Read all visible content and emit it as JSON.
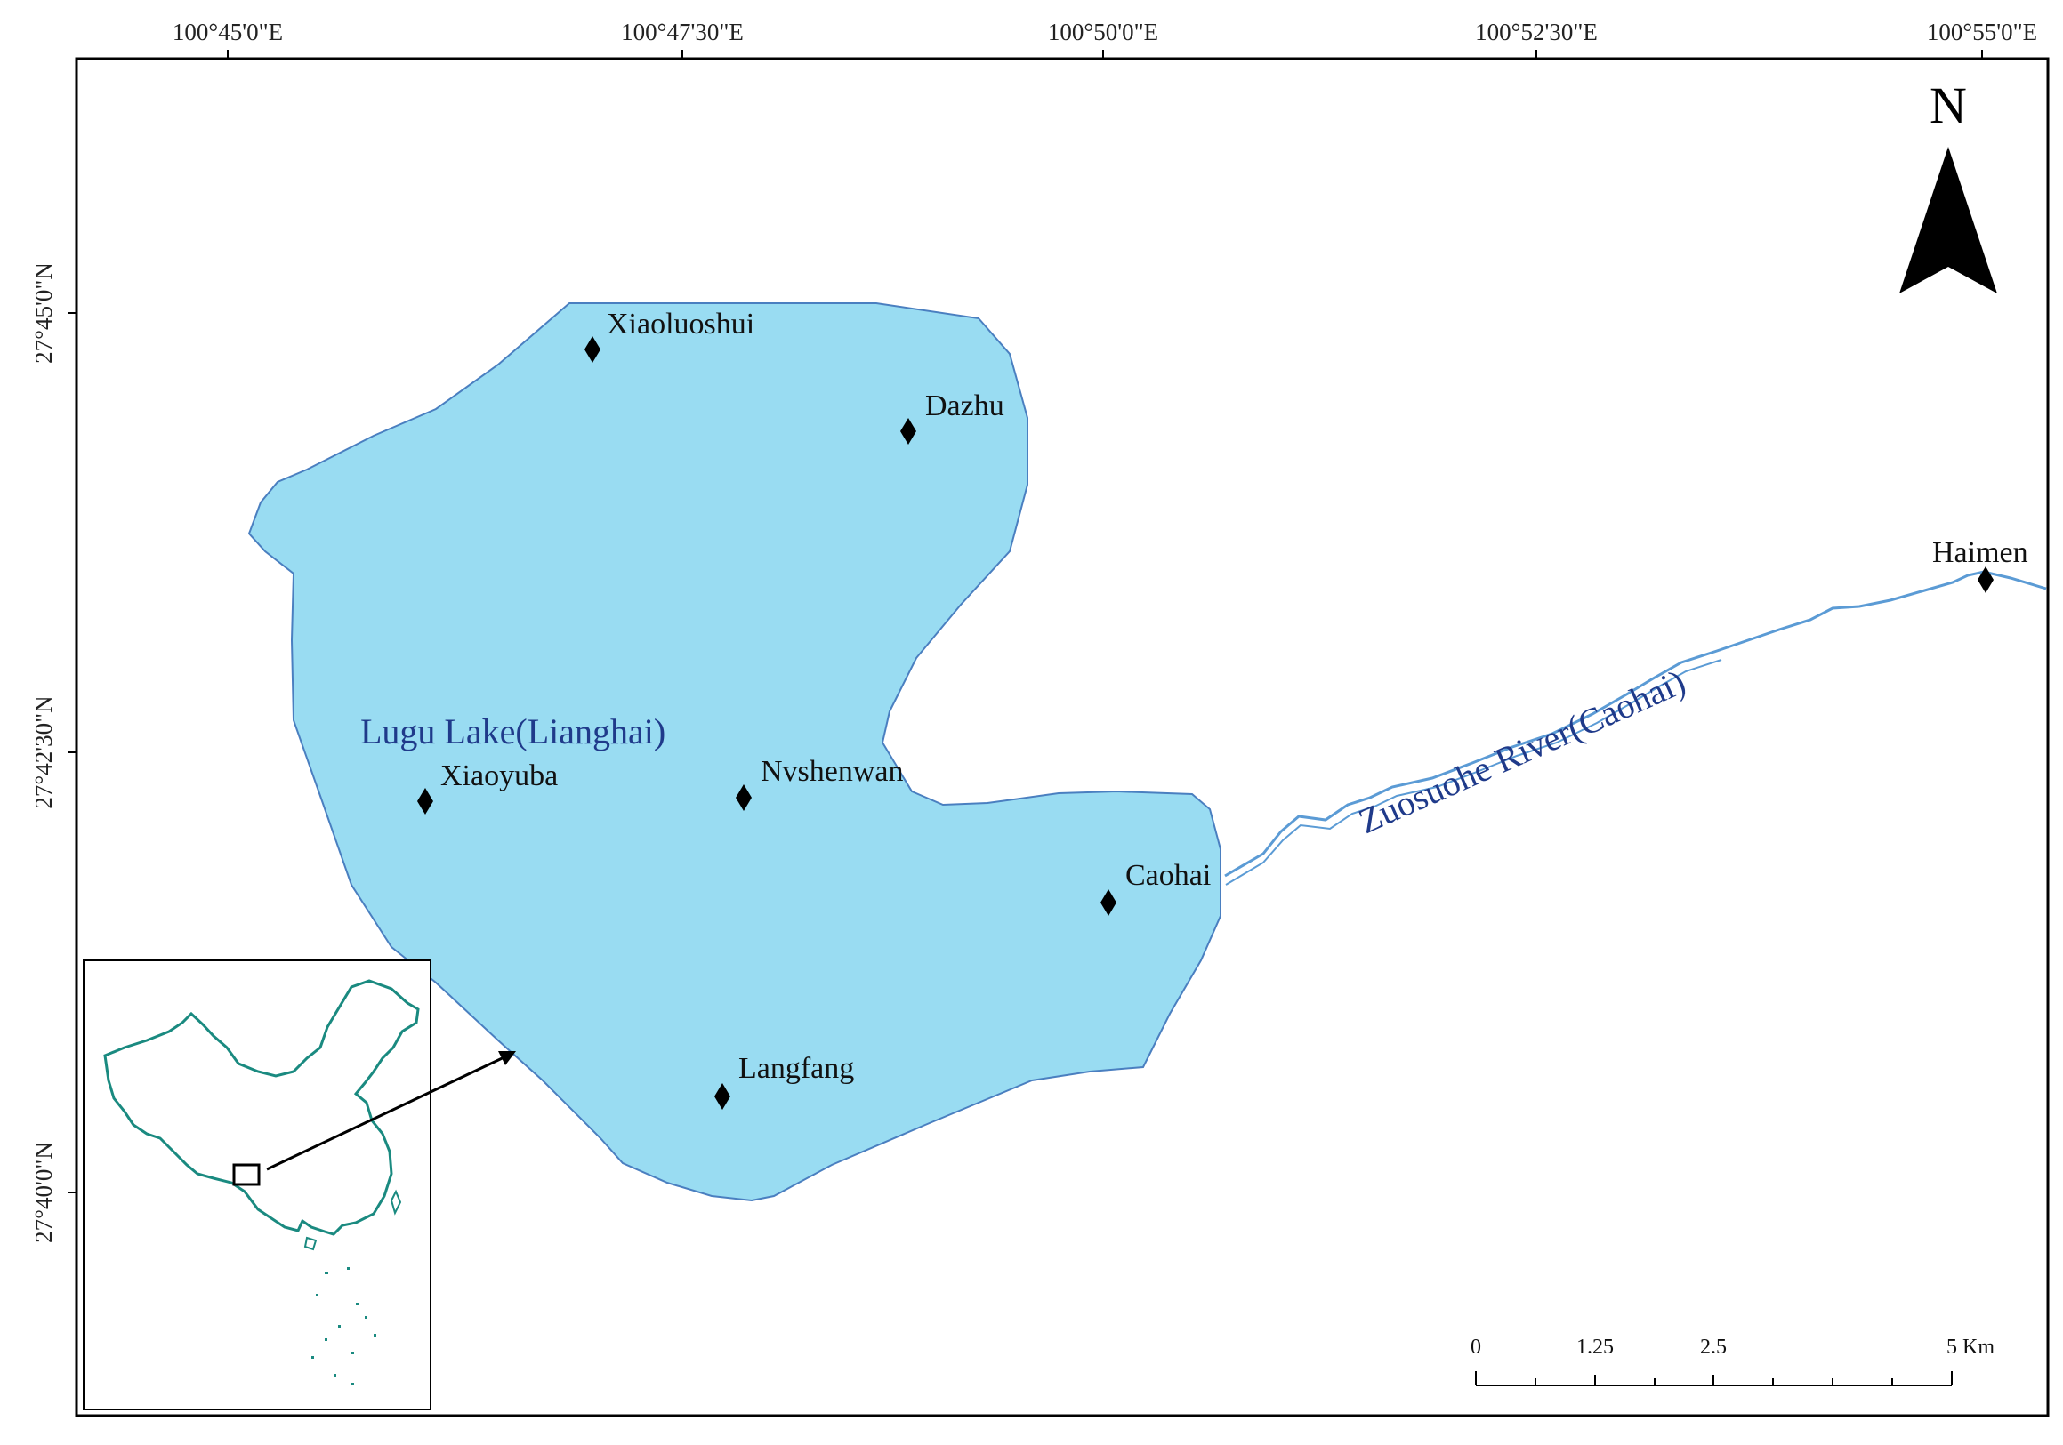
{
  "map": {
    "lon_ticks": [
      "100°45'0\"E",
      "100°47'30\"E",
      "100°50'0\"E",
      "100°52'30\"E",
      "100°55'0\"E"
    ],
    "lat_ticks": [
      "27°45'0\"N",
      "27°42'30\"N",
      "27°40'0\"N"
    ],
    "north_label": "N",
    "lake_label": "Lugu Lake(Lianghai)",
    "river_label": "Zuosuohe River(Caohai)",
    "sites": [
      {
        "name": "Xiaoluoshui"
      },
      {
        "name": "Dazhu"
      },
      {
        "name": "Xiaoyuba"
      },
      {
        "name": "Nvshenwan"
      },
      {
        "name": "Caohai"
      },
      {
        "name": "Langfang"
      },
      {
        "name": "Haimen"
      }
    ],
    "scale_bar": {
      "labels": [
        "0",
        "1.25",
        "2.5",
        "5 Km"
      ]
    },
    "colors": {
      "lake": "#99dcf2",
      "lake_outline": "#4a7fc0",
      "river": "#5b9bd5",
      "inset_outline": "#1a8a80"
    }
  }
}
